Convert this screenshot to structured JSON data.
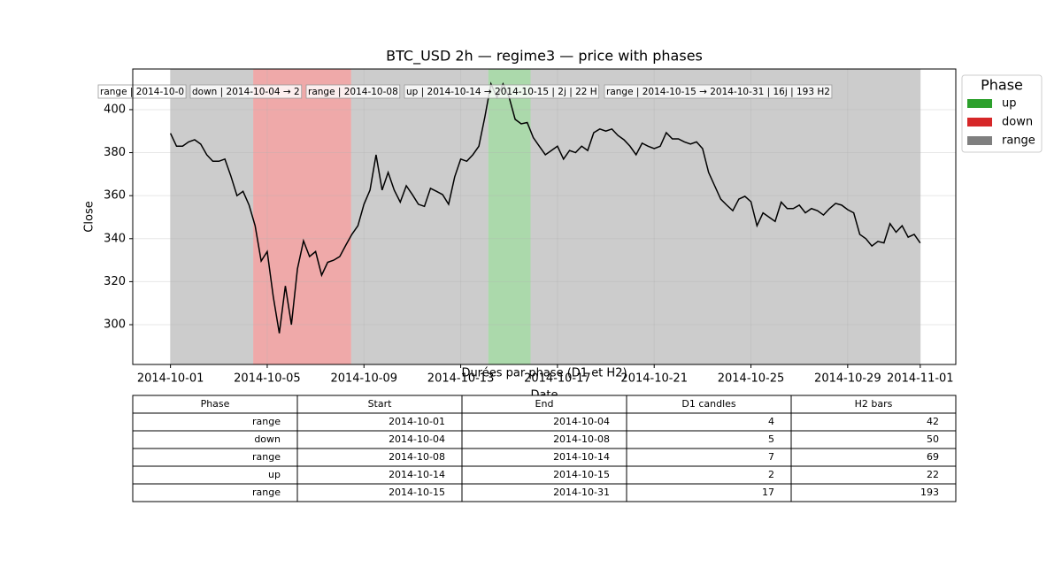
{
  "chart_data": {
    "type": "line",
    "title": "BTC_USD 2h — regime3 — price with phases",
    "xlabel": "Date",
    "ylabel": "Close",
    "x": [
      0,
      0.25,
      0.5,
      0.75,
      1,
      1.25,
      1.5,
      1.75,
      2,
      2.25,
      2.5,
      2.75,
      3,
      3.25,
      3.5,
      3.75,
      4,
      4.25,
      4.5,
      4.75,
      5,
      5.25,
      5.5,
      5.75,
      6,
      6.25,
      6.5,
      6.75,
      7,
      7.25,
      7.5,
      7.75,
      8,
      8.25,
      8.5,
      8.75,
      9,
      9.25,
      9.5,
      9.75,
      10,
      10.25,
      10.5,
      10.75,
      11,
      11.25,
      11.5,
      11.75,
      12,
      12.25,
      12.5,
      12.75,
      13,
      13.25,
      13.5,
      13.75,
      14,
      14.25,
      14.5,
      14.75,
      15,
      15.25,
      15.5,
      15.75,
      16,
      16.25,
      16.5,
      16.75,
      17,
      17.25,
      17.5,
      17.75,
      18,
      18.25,
      18.5,
      18.75,
      19,
      19.25,
      19.5,
      19.75,
      20,
      20.25,
      20.5,
      20.75,
      21,
      21.25,
      21.5,
      21.75,
      22,
      22.25,
      22.5,
      22.75,
      23,
      23.25,
      23.5,
      23.75,
      24,
      24.25,
      24.5,
      24.75,
      25,
      25.25,
      25.5,
      25.75,
      26,
      26.25,
      26.5,
      26.75,
      27,
      27.25,
      27.5,
      27.75,
      28,
      28.25,
      28.5,
      28.75,
      29,
      29.25,
      29.5,
      29.75,
      30,
      30.25,
      30.5,
      30.75,
      31
    ],
    "values": [
      389,
      383,
      383,
      385,
      386,
      384,
      379,
      376,
      376,
      377,
      369,
      360,
      362,
      355.6,
      346,
      329.6,
      334,
      313,
      296,
      318,
      300,
      326,
      339,
      331.7,
      334,
      323,
      329,
      330,
      331.7,
      337,
      342,
      346,
      356,
      362.6,
      379,
      362.6,
      370.8,
      362.6,
      357,
      364.6,
      360.5,
      356,
      355,
      363.4,
      362,
      360.5,
      356,
      368.7,
      377,
      376,
      379,
      383,
      396.7,
      412,
      405.8,
      412,
      405.8,
      395.5,
      393.4,
      394,
      387,
      383,
      379,
      381,
      383,
      377,
      381,
      380,
      383,
      381,
      389.3,
      391,
      390,
      391,
      388,
      386,
      383,
      379,
      384.4,
      383,
      381.9,
      383,
      389.3,
      386.4,
      386.4,
      385,
      384,
      385,
      381.9,
      370.8,
      364.6,
      358.4,
      355.6,
      353,
      358.4,
      359.7,
      357.2,
      346,
      352,
      350,
      348,
      357,
      354,
      354,
      355.6,
      352,
      354,
      353,
      351,
      354,
      356.4,
      355.6,
      353.5,
      352,
      342,
      340,
      336.6,
      338.7,
      338,
      347,
      343,
      346,
      340.7,
      342,
      338
    ],
    "color": "#000000",
    "xlim": [
      -1.56,
      32.47
    ],
    "xticks": [
      {
        "value": 0,
        "label": "2014-10-01"
      },
      {
        "value": 4,
        "label": "2014-10-05"
      },
      {
        "value": 8,
        "label": "2014-10-09"
      },
      {
        "value": 12,
        "label": "2014-10-13"
      },
      {
        "value": 16,
        "label": "2014-10-17"
      },
      {
        "value": 20,
        "label": "2014-10-21"
      },
      {
        "value": 24,
        "label": "2014-10-25"
      },
      {
        "value": 28,
        "label": "2014-10-29"
      },
      {
        "value": 31,
        "label": "2014-11-01"
      }
    ],
    "ylim": [
      281.5,
      418.9
    ],
    "yticks": [
      300,
      320,
      340,
      360,
      380,
      400
    ],
    "grid": true,
    "phases": [
      {
        "name": "range",
        "start": 0,
        "end": 3.42,
        "label": "range | 2014-10-0"
      },
      {
        "name": "down",
        "start": 3.42,
        "end": 7.47,
        "label": "down | 2014-10-04 → 2"
      },
      {
        "name": "range",
        "start": 7.47,
        "end": 13.14,
        "label": "range | 2014-10-08"
      },
      {
        "name": "up",
        "start": 13.14,
        "end": 14.89,
        "label": "up | 2014-10-14 → 2014-10-15 | 2j | 22 H"
      },
      {
        "name": "range",
        "start": 14.89,
        "end": 31,
        "label": "range | 2014-10-15 → 2014-10-31 | 16j | 193 H2"
      }
    ],
    "legend": {
      "title": "Phase",
      "position": "outside upper right",
      "entries": [
        {
          "name": "up",
          "color": "#2ca02c"
        },
        {
          "name": "down",
          "color": "#d62728"
        },
        {
          "name": "range",
          "color": "#7f7f7f"
        }
      ]
    }
  },
  "table": {
    "title": "Durées par phase (D1 et H2)",
    "columns": [
      "Phase",
      "Start",
      "End",
      "D1 candles",
      "H2 bars"
    ],
    "rows": [
      [
        "range",
        "2014-10-01",
        "2014-10-04",
        "4",
        "42"
      ],
      [
        "down",
        "2014-10-04",
        "2014-10-08",
        "5",
        "50"
      ],
      [
        "range",
        "2014-10-08",
        "2014-10-14",
        "7",
        "69"
      ],
      [
        "up",
        "2014-10-14",
        "2014-10-15",
        "2",
        "22"
      ],
      [
        "range",
        "2014-10-15",
        "2014-10-31",
        "17",
        "193"
      ]
    ]
  }
}
